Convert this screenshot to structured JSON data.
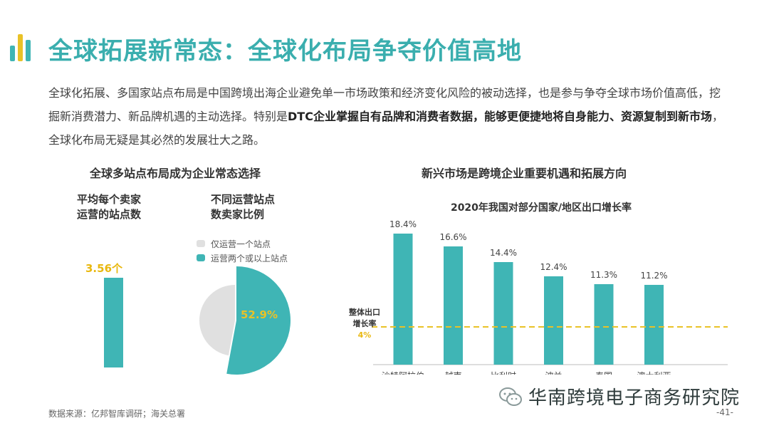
{
  "header": {
    "title": "全球拓展新常态：全球化布局争夺价值高地",
    "colors": {
      "teal": "#3fb5b5",
      "yellow": "#e9c227",
      "grey": "#e0e0e0"
    }
  },
  "intro": {
    "p1": "全球化拓展、多国家站点布局是中国跨境出海企业避免单一市场政策和经济变化风险的被动选择，也是参与争夺全球市场价值高低，挖掘新消费潜力、新品牌机遇的主动选择。特别是",
    "b1": "DTC企业掌握自有品牌和消费者数据，能够更便捷地将自身能力、资源复制到新市场",
    "p2": "，全球化布局无疑是其必然的发展壮大之路。"
  },
  "left_panel": {
    "title": "全球多站点布局成为企业常态选择",
    "sub1_line1": "平均每个卖家",
    "sub1_line2": "运营的站点数",
    "sub2_line1": "不同运营站点",
    "sub2_line2": "数卖家比例",
    "avg_sites_label": "3.56个",
    "avg_sites_value": 3.56,
    "legend": [
      {
        "label": "仅运营一个站点",
        "color": "#e0e0e0"
      },
      {
        "label": "运营两个或以上站点",
        "color": "#3fb5b5"
      }
    ],
    "pie_label": "52.9%"
  },
  "right_panel": {
    "title": "新兴市场是跨境企业重要机遇和拓展方向",
    "ref_label_line1": "整体出口",
    "ref_label_line2": "增长率",
    "ref_value_label": "4%"
  },
  "chart_data": [
    {
      "type": "pie",
      "values": [
        47.1,
        52.9
      ],
      "categories": [
        "仅运营一个站点",
        "运营两个或以上站点"
      ],
      "colors": [
        "#e0e0e0",
        "#3fb5b5"
      ],
      "data_labels": [
        "",
        "52.9%"
      ]
    },
    {
      "type": "bar",
      "title": "2020年我国对部分国家/地区出口增长率",
      "categories": [
        "沙特阿拉伯",
        "越南",
        "比利时",
        "波兰",
        "泰国",
        "澳大利亚"
      ],
      "values": [
        18.4,
        16.6,
        14.4,
        12.4,
        11.3,
        11.2
      ],
      "data_labels": [
        "18.4%",
        "16.6%",
        "14.4%",
        "12.4%",
        "11.3%",
        "11.2%"
      ],
      "reference_line": {
        "value": 4,
        "style": "dashed"
      },
      "ylim": [
        0,
        20
      ],
      "color": "#3fb5b5"
    }
  ],
  "footer": {
    "source": "数据来源：亿邦智库调研；海关总署",
    "watermark": "华南跨境电子商务研究院",
    "page": "-41-"
  }
}
